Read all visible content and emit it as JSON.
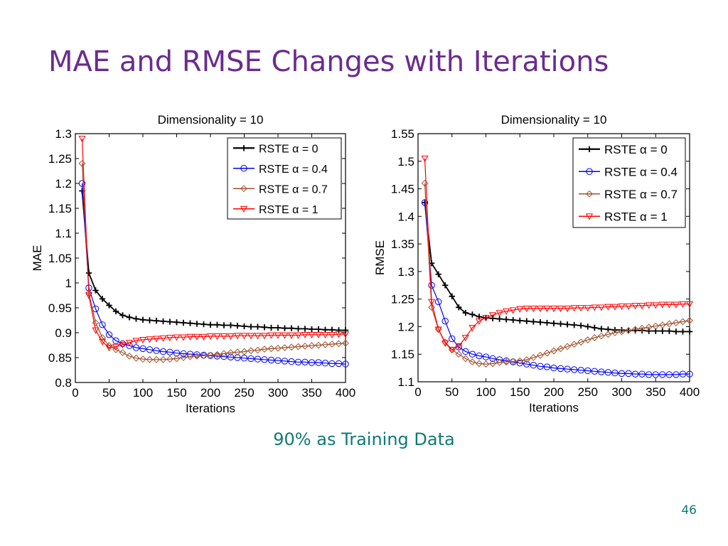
{
  "slide": {
    "title": "MAE and RMSE Changes with Iterations",
    "caption": "90% as Training Data",
    "page_number": "46"
  },
  "colors": {
    "title": "#6b2c8f",
    "caption": "#0e7a74",
    "series": [
      "#000000",
      "#0000ff",
      "#a0522d",
      "#ff0000"
    ]
  },
  "chart_data": [
    {
      "type": "line",
      "title": "Dimensionality = 10",
      "xlabel": "Iterations",
      "ylabel": "MAE",
      "xlim": [
        0,
        400
      ],
      "ylim": [
        0.8,
        1.3
      ],
      "xticks": [
        0,
        50,
        100,
        150,
        200,
        250,
        300,
        350,
        400
      ],
      "yticks": [
        0.8,
        0.85,
        0.9,
        0.95,
        1,
        1.05,
        1.1,
        1.15,
        1.2,
        1.25,
        1.3
      ],
      "ytick_labels": [
        "0.8",
        "0.85",
        "0.9",
        "0.95",
        "1",
        "1.05",
        "1.1",
        "1.15",
        "1.2",
        "1.25",
        "1.3"
      ],
      "grid": false,
      "legend_position": "top-right",
      "x": [
        10,
        20,
        30,
        40,
        50,
        60,
        70,
        80,
        90,
        100,
        110,
        120,
        130,
        140,
        150,
        160,
        170,
        180,
        190,
        200,
        210,
        220,
        230,
        240,
        250,
        260,
        270,
        280,
        290,
        300,
        310,
        320,
        330,
        340,
        350,
        360,
        370,
        380,
        390,
        400
      ],
      "series": [
        {
          "name": "RSTE α = 0",
          "marker": "plus",
          "color": "#000000",
          "values": [
            1.185,
            1.02,
            0.985,
            0.968,
            0.955,
            0.943,
            0.935,
            0.931,
            0.928,
            0.926,
            0.925,
            0.924,
            0.923,
            0.922,
            0.921,
            0.92,
            0.919,
            0.918,
            0.917,
            0.916,
            0.916,
            0.915,
            0.915,
            0.914,
            0.913,
            0.912,
            0.912,
            0.911,
            0.91,
            0.91,
            0.909,
            0.909,
            0.908,
            0.908,
            0.907,
            0.907,
            0.906,
            0.906,
            0.905,
            0.905
          ]
        },
        {
          "name": "RSTE α = 0.4",
          "marker": "circle",
          "color": "#0000ff",
          "values": [
            1.2,
            0.99,
            0.948,
            0.916,
            0.896,
            0.884,
            0.878,
            0.874,
            0.87,
            0.868,
            0.866,
            0.864,
            0.862,
            0.861,
            0.859,
            0.858,
            0.857,
            0.856,
            0.855,
            0.854,
            0.853,
            0.852,
            0.851,
            0.85,
            0.849,
            0.848,
            0.847,
            0.846,
            0.845,
            0.844,
            0.843,
            0.842,
            0.841,
            0.841,
            0.84,
            0.84,
            0.839,
            0.838,
            0.838,
            0.837
          ]
        },
        {
          "name": "RSTE α = 0.7",
          "marker": "diamond",
          "color": "#a0522d",
          "values": [
            1.24,
            0.98,
            0.92,
            0.89,
            0.874,
            0.866,
            0.86,
            0.853,
            0.849,
            0.847,
            0.846,
            0.846,
            0.846,
            0.847,
            0.848,
            0.85,
            0.852,
            0.853,
            0.854,
            0.855,
            0.856,
            0.858,
            0.86,
            0.861,
            0.862,
            0.864,
            0.865,
            0.867,
            0.868,
            0.869,
            0.87,
            0.871,
            0.872,
            0.873,
            0.874,
            0.875,
            0.876,
            0.877,
            0.878,
            0.879
          ]
        },
        {
          "name": "RSTE α = 1",
          "marker": "triangle-down",
          "color": "#ff0000",
          "values": [
            1.29,
            0.975,
            0.905,
            0.882,
            0.87,
            0.872,
            0.876,
            0.88,
            0.884,
            0.886,
            0.887,
            0.888,
            0.889,
            0.89,
            0.891,
            0.891,
            0.892,
            0.892,
            0.892,
            0.893,
            0.893,
            0.893,
            0.893,
            0.894,
            0.894,
            0.894,
            0.894,
            0.894,
            0.895,
            0.895,
            0.895,
            0.895,
            0.895,
            0.896,
            0.896,
            0.896,
            0.896,
            0.896,
            0.897,
            0.897
          ]
        }
      ]
    },
    {
      "type": "line",
      "title": "Dimensionality = 10",
      "xlabel": "Iterations",
      "ylabel": "RMSE",
      "xlim": [
        0,
        400
      ],
      "ylim": [
        1.1,
        1.55
      ],
      "xticks": [
        0,
        50,
        100,
        150,
        200,
        250,
        300,
        350,
        400
      ],
      "yticks": [
        1.1,
        1.15,
        1.2,
        1.25,
        1.3,
        1.35,
        1.4,
        1.45,
        1.5,
        1.55
      ],
      "ytick_labels": [
        "1.1",
        "1.15",
        "1.2",
        "1.25",
        "1.3",
        "1.35",
        "1.4",
        "1.45",
        "1.5",
        "1.55"
      ],
      "grid": false,
      "legend_position": "top-right",
      "x": [
        10,
        20,
        30,
        40,
        50,
        60,
        70,
        80,
        90,
        100,
        110,
        120,
        130,
        140,
        150,
        160,
        170,
        180,
        190,
        200,
        210,
        220,
        230,
        240,
        250,
        260,
        270,
        280,
        290,
        300,
        310,
        320,
        330,
        340,
        350,
        360,
        370,
        380,
        390,
        400
      ],
      "series": [
        {
          "name": "RSTE α = 0",
          "marker": "plus",
          "color": "#000000",
          "values": [
            1.425,
            1.315,
            1.295,
            1.275,
            1.255,
            1.235,
            1.225,
            1.222,
            1.218,
            1.216,
            1.215,
            1.214,
            1.213,
            1.212,
            1.211,
            1.21,
            1.209,
            1.208,
            1.207,
            1.206,
            1.205,
            1.204,
            1.203,
            1.202,
            1.2,
            1.198,
            1.196,
            1.195,
            1.194,
            1.194,
            1.193,
            1.193,
            1.193,
            1.192,
            1.192,
            1.192,
            1.192,
            1.191,
            1.191,
            1.191
          ]
        },
        {
          "name": "RSTE α = 0.4",
          "marker": "circle",
          "color": "#0000ff",
          "values": [
            1.425,
            1.275,
            1.245,
            1.21,
            1.178,
            1.163,
            1.155,
            1.15,
            1.147,
            1.145,
            1.142,
            1.14,
            1.138,
            1.136,
            1.134,
            1.132,
            1.13,
            1.128,
            1.127,
            1.125,
            1.124,
            1.123,
            1.122,
            1.121,
            1.12,
            1.119,
            1.118,
            1.117,
            1.116,
            1.115,
            1.115,
            1.114,
            1.114,
            1.113,
            1.113,
            1.113,
            1.113,
            1.113,
            1.114,
            1.114
          ]
        },
        {
          "name": "RSTE α = 0.7",
          "marker": "diamond",
          "color": "#a0522d",
          "values": [
            1.46,
            1.235,
            1.195,
            1.172,
            1.158,
            1.15,
            1.142,
            1.136,
            1.133,
            1.132,
            1.133,
            1.135,
            1.136,
            1.137,
            1.138,
            1.14,
            1.144,
            1.148,
            1.152,
            1.156,
            1.16,
            1.164,
            1.168,
            1.172,
            1.176,
            1.18,
            1.183,
            1.186,
            1.189,
            1.191,
            1.193,
            1.195,
            1.197,
            1.199,
            1.201,
            1.203,
            1.205,
            1.207,
            1.209,
            1.211
          ]
        },
        {
          "name": "RSTE α = 1",
          "marker": "triangle-down",
          "color": "#ff0000",
          "values": [
            1.505,
            1.245,
            1.195,
            1.17,
            1.158,
            1.165,
            1.18,
            1.198,
            1.21,
            1.216,
            1.221,
            1.225,
            1.228,
            1.23,
            1.232,
            1.233,
            1.233,
            1.233,
            1.233,
            1.233,
            1.233,
            1.233,
            1.234,
            1.234,
            1.234,
            1.235,
            1.235,
            1.236,
            1.236,
            1.237,
            1.237,
            1.238,
            1.238,
            1.239,
            1.239,
            1.24,
            1.24,
            1.24,
            1.241,
            1.241
          ]
        }
      ]
    }
  ]
}
